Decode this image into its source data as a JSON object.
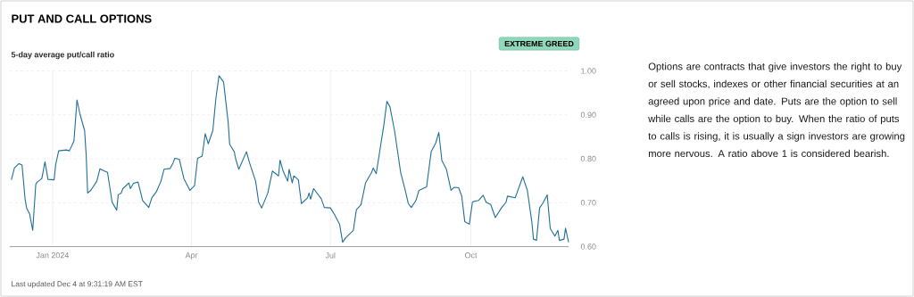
{
  "chart_data": {
    "type": "line",
    "title": "PUT AND CALL OPTIONS",
    "subtitle": "5-day average put/call ratio",
    "annotations": [
      "EXTREME GREED",
      "Options are contracts that give investors the right to buy or sell stocks, indexes or other financial securities at an agreed upon price and date. Puts are the option to sell while calls are the option to buy. When the ratio of puts to calls is rising, it is usually a sign investors are growing more nervous. A ratio above 1 is considered bearish.",
      "Last updated Dec 4 at 9:31:19 AM EST"
    ],
    "x": [
      "2023-12-05",
      "2023-12-07",
      "2023-12-10",
      "2023-12-12",
      "2023-12-14",
      "2023-12-15",
      "2023-12-17",
      "2023-12-19",
      "2023-12-21",
      "2023-12-22",
      "2023-12-25",
      "2023-12-27",
      "2023-12-29",
      "2024-01-02",
      "2024-01-03",
      "2024-01-05",
      "2024-01-10",
      "2024-01-12",
      "2024-01-15",
      "2024-01-17",
      "2024-01-19",
      "2024-01-22",
      "2024-01-23",
      "2024-01-24",
      "2024-01-26",
      "2024-01-30",
      "2024-02-01",
      "2024-02-04",
      "2024-02-06",
      "2024-02-09",
      "2024-02-12",
      "2024-02-13",
      "2024-02-15",
      "2024-02-16",
      "2024-02-20",
      "2024-02-21",
      "2024-02-23",
      "2024-02-26",
      "2024-02-29",
      "2024-03-04",
      "2024-03-06",
      "2024-03-09",
      "2024-03-12",
      "2024-03-14",
      "2024-03-18",
      "2024-03-20",
      "2024-03-21",
      "2024-03-24",
      "2024-03-27",
      "2024-03-31",
      "2024-04-03",
      "2024-04-05",
      "2024-04-08",
      "2024-04-10",
      "2024-04-12",
      "2024-04-15",
      "2024-04-17",
      "2024-04-19",
      "2024-04-22",
      "2024-04-25",
      "2024-04-26",
      "2024-04-29",
      "2024-04-30",
      "2024-05-02",
      "2024-05-07",
      "2024-05-09",
      "2024-05-13",
      "2024-05-15",
      "2024-05-17",
      "2024-05-21",
      "2024-05-24",
      "2024-05-28",
      "2024-05-29",
      "2024-05-31",
      "2024-06-03",
      "2024-06-04",
      "2024-06-06",
      "2024-06-07",
      "2024-06-10",
      "2024-06-12",
      "2024-06-16",
      "2024-06-17",
      "2024-06-18",
      "2024-06-20",
      "2024-06-25",
      "2024-06-27",
      "2024-07-01",
      "2024-07-04",
      "2024-07-07",
      "2024-07-09",
      "2024-07-11",
      "2024-07-16",
      "2024-07-18",
      "2024-07-21",
      "2024-07-24",
      "2024-07-28",
      "2024-07-29",
      "2024-07-31",
      "2024-08-05",
      "2024-08-07",
      "2024-08-09",
      "2024-08-12",
      "2024-08-16",
      "2024-08-19",
      "2024-08-21",
      "2024-08-23",
      "2024-08-26",
      "2024-08-28",
      "2024-09-02",
      "2024-09-05",
      "2024-09-08",
      "2024-09-10",
      "2024-09-12",
      "2024-09-15",
      "2024-09-18",
      "2024-09-20",
      "2024-09-23",
      "2024-09-25",
      "2024-09-27",
      "2024-09-30",
      "2024-10-02",
      "2024-10-03",
      "2024-10-06",
      "2024-10-09",
      "2024-10-11",
      "2024-10-14",
      "2024-10-17",
      "2024-10-21",
      "2024-10-24",
      "2024-10-25",
      "2024-10-30",
      "2024-11-04",
      "2024-11-07",
      "2024-11-10",
      "2024-11-11",
      "2024-11-13",
      "2024-11-15",
      "2024-11-17",
      "2024-11-20",
      "2024-11-22",
      "2024-11-25",
      "2024-11-27",
      "2024-11-28",
      "2024-12-01",
      "2024-12-02",
      "2024-12-04"
    ],
    "series": [
      {
        "color": "#1f6f96",
        "values": [
          0.752,
          0.779,
          0.789,
          0.786,
          0.708,
          0.688,
          0.674,
          0.637,
          0.742,
          0.747,
          0.755,
          0.793,
          0.753,
          0.752,
          0.786,
          0.818,
          0.82,
          0.818,
          0.84,
          0.934,
          0.901,
          0.864,
          0.809,
          0.722,
          0.728,
          0.749,
          0.777,
          0.772,
          0.769,
          0.701,
          0.683,
          0.718,
          0.722,
          0.732,
          0.745,
          0.732,
          0.744,
          0.747,
          0.705,
          0.689,
          0.711,
          0.725,
          0.749,
          0.776,
          0.778,
          0.791,
          0.801,
          0.799,
          0.755,
          0.728,
          0.739,
          0.801,
          0.806,
          0.857,
          0.834,
          0.865,
          0.938,
          0.989,
          0.975,
          0.884,
          0.833,
          0.816,
          0.799,
          0.776,
          0.816,
          0.791,
          0.749,
          0.701,
          0.688,
          0.722,
          0.772,
          0.761,
          0.797,
          0.772,
          0.749,
          0.776,
          0.745,
          0.761,
          0.752,
          0.698,
          0.711,
          0.722,
          0.708,
          0.732,
          0.709,
          0.689,
          0.688,
          0.671,
          0.651,
          0.61,
          0.62,
          0.637,
          0.684,
          0.695,
          0.745,
          0.769,
          0.779,
          0.766,
          0.877,
          0.931,
          0.918,
          0.864,
          0.769,
          0.728,
          0.698,
          0.689,
          0.705,
          0.728,
          0.736,
          0.816,
          0.836,
          0.86,
          0.796,
          0.776,
          0.728,
          0.735,
          0.734,
          0.715,
          0.657,
          0.651,
          0.701,
          0.703,
          0.705,
          0.717,
          0.701,
          0.696,
          0.666,
          0.688,
          0.701,
          0.715,
          0.711,
          0.759,
          0.728,
          0.654,
          0.617,
          0.614,
          0.688,
          0.698,
          0.718,
          0.641,
          0.624,
          0.637,
          0.614,
          0.617,
          0.642,
          0.61
        ]
      }
    ],
    "xlim": [
      "2023-12-04",
      "2024-12-04"
    ],
    "ylim": [
      0.6,
      1.0
    ],
    "xticks": [
      {
        "value": "2024-01-01",
        "label": "Jan 2024"
      },
      {
        "value": "2024-04-01",
        "label": "Apr"
      },
      {
        "value": "2024-07-01",
        "label": "Jul"
      },
      {
        "value": "2024-10-01",
        "label": "Oct"
      }
    ],
    "yticks": [
      {
        "value": 0.6,
        "label": "0.60"
      },
      {
        "value": 0.7,
        "label": "0.70"
      },
      {
        "value": 0.8,
        "label": "0.80"
      },
      {
        "value": 0.9,
        "label": "0.90"
      },
      {
        "value": 1.0,
        "label": "1.00"
      }
    ],
    "grid": true,
    "marker": "none",
    "line_style": "solid"
  }
}
